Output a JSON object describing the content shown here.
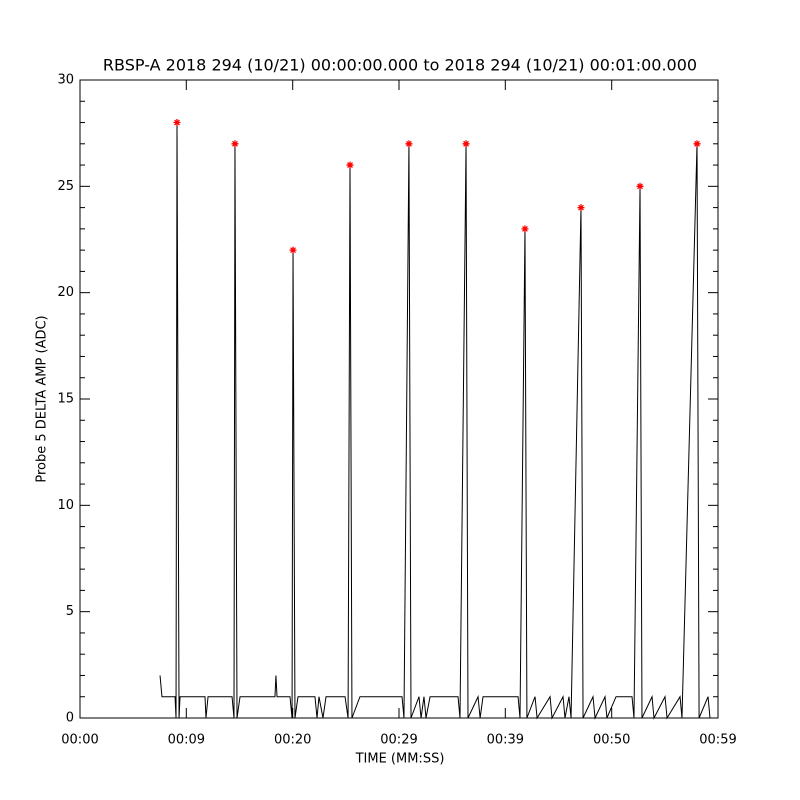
{
  "chart_data": {
    "type": "line",
    "title": "RBSP-A 2018 294 (10/21) 00:00:00.000 to 2018 294 (10/21) 00:01:00.000",
    "xlabel": "TIME (MM:SS)",
    "ylabel": "Probe 5 DELTA AMP (ADC)",
    "xlim": [
      0,
      59
    ],
    "ylim": [
      0,
      30
    ],
    "xticks": [
      {
        "value": 0,
        "label": "00:00"
      },
      {
        "value": 9.83,
        "label": "00:09"
      },
      {
        "value": 19.67,
        "label": "00:20"
      },
      {
        "value": 29.5,
        "label": "00:29"
      },
      {
        "value": 39.33,
        "label": "00:39"
      },
      {
        "value": 49.17,
        "label": "00:50"
      },
      {
        "value": 59,
        "label": "00:59"
      }
    ],
    "yticks": [
      0,
      5,
      10,
      15,
      20,
      25,
      30
    ],
    "yminor": 5,
    "series": [
      {
        "color": "#000000",
        "x": [
          7.4,
          7.58,
          8.79,
          8.88,
          8.97,
          9.16,
          9.25,
          11.56,
          11.65,
          11.84,
          14.06,
          14.24,
          14.33,
          14.52,
          14.8,
          18.03,
          18.12,
          18.22,
          19.42,
          19.61,
          19.7,
          19.88,
          20.16,
          21.73,
          21.92,
          22.1,
          22.47,
          22.75,
          24.51,
          24.79,
          24.97,
          25.15,
          25.89,
          29.78,
          29.96,
          30.42,
          30.61,
          31.35,
          31.54,
          31.81,
          32.0,
          32.37,
          34.96,
          35.14,
          35.7,
          35.88,
          36.81,
          37.0,
          37.27,
          40.51,
          40.69,
          41.15,
          41.33,
          42.08,
          42.27,
          43.47,
          43.65,
          44.67,
          44.85,
          45.22,
          45.41,
          46.33,
          46.52,
          47.44,
          47.63,
          48.55,
          48.73,
          49.57,
          51.05,
          51.23,
          51.79,
          51.97,
          52.9,
          53.08,
          54.1,
          54.29,
          55.49,
          55.67,
          57.06,
          57.25,
          58.08,
          58.26
        ],
        "values": [
          2,
          1,
          1,
          0,
          28,
          0,
          1,
          1,
          0,
          1,
          1,
          0,
          27,
          0,
          1,
          1,
          2,
          1,
          1,
          0,
          22,
          0,
          1,
          1,
          0,
          1,
          0,
          1,
          1,
          0,
          26,
          0,
          1,
          1,
          0,
          27,
          0,
          1,
          0,
          1,
          0,
          1,
          1,
          0,
          27,
          0,
          1,
          0,
          1,
          1,
          0,
          23,
          0,
          1,
          0,
          1,
          0,
          1,
          0,
          1,
          0,
          24,
          0,
          1,
          0,
          1,
          0,
          1,
          1,
          0,
          25,
          0,
          1,
          0,
          1,
          0,
          1,
          0,
          27,
          0,
          1,
          0
        ]
      },
      {
        "color": "#ff0000",
        "marker": "asterisk",
        "x": [
          8.97,
          14.33,
          19.7,
          24.97,
          30.42,
          35.7,
          41.15,
          46.33,
          51.79,
          57.06
        ],
        "values": [
          28,
          27,
          22,
          26,
          27,
          27,
          23,
          24,
          25,
          27
        ]
      }
    ]
  }
}
